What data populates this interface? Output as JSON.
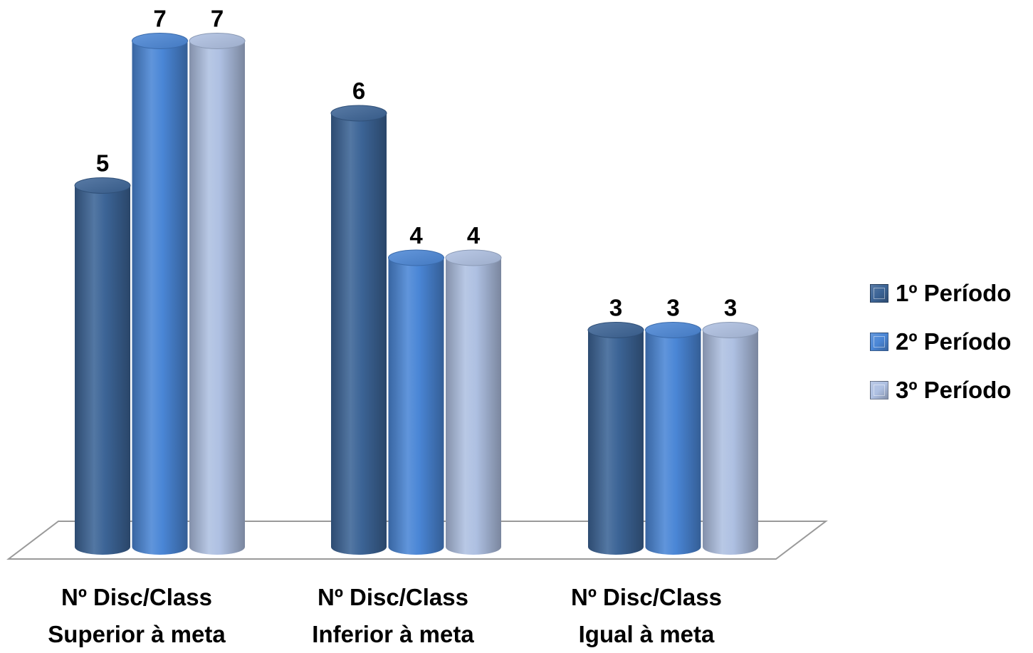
{
  "chart_data": {
    "type": "bar",
    "style": "3d-cylinder",
    "categories": [
      [
        "Nº Disc/Class",
        "Superior à meta"
      ],
      [
        "Nº Disc/Class",
        "Inferior à meta"
      ],
      [
        "Nº Disc/Class",
        "Igual à meta"
      ]
    ],
    "series": [
      {
        "name": "1º Período",
        "values": [
          5,
          6,
          3
        ],
        "color": "#3C6496"
      },
      {
        "name": "2º Período",
        "values": [
          7,
          4,
          3
        ],
        "color": "#4A86D6"
      },
      {
        "name": "3º Período",
        "values": [
          7,
          4,
          3
        ],
        "color": "#AEC0E2"
      }
    ],
    "data_labels": true,
    "ylim": [
      0,
      7
    ],
    "grid": false,
    "legend_position": "right"
  }
}
